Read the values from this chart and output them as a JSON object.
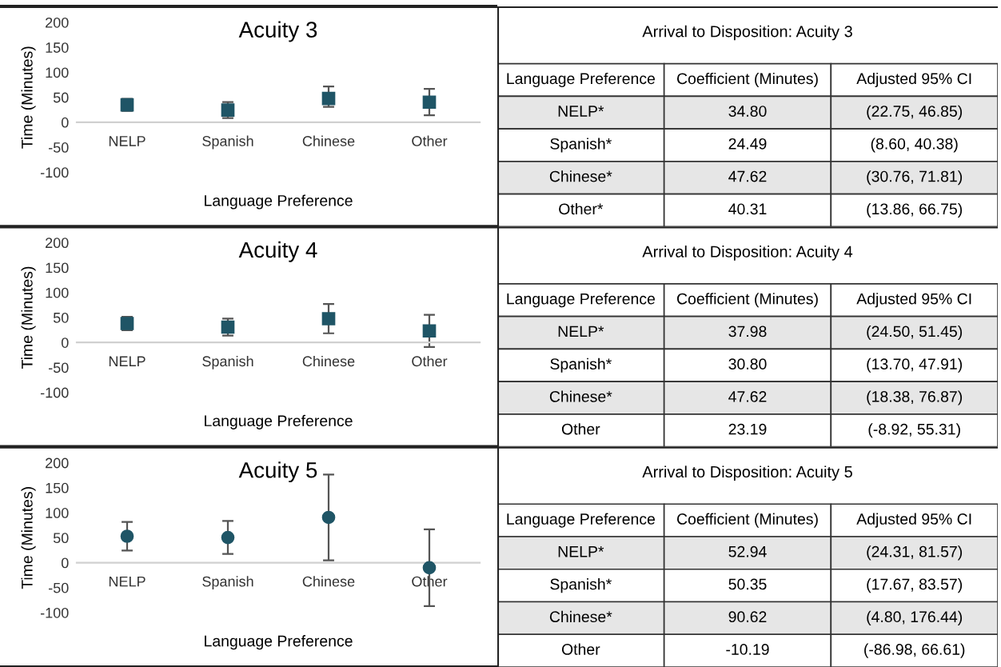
{
  "chart_data": [
    {
      "type": "scatter",
      "title": "Acuity 3",
      "xlabel": "Language Preference",
      "ylabel": "Time (Minutes)",
      "categories": [
        "NELP",
        "Spanish",
        "Chinese",
        "Other"
      ],
      "values": [
        34.8,
        24.49,
        47.62,
        40.31
      ],
      "errors": [
        [
          22.75,
          46.85
        ],
        [
          8.6,
          40.38
        ],
        [
          30.76,
          71.81
        ],
        [
          13.86,
          66.75
        ]
      ],
      "color": "#1f5566",
      "marker": "square",
      "ylim": [
        -100,
        200
      ],
      "yticks": [
        -100,
        -50,
        0,
        50,
        100,
        150,
        200
      ],
      "grid": false
    },
    {
      "type": "other",
      "title": "Arrival to Disposition: Acuity 3",
      "annotations": [
        "Language Preference",
        "Coefficient (Minutes)",
        "Adjusted 95% CI",
        "NELP*",
        "34.80",
        "(22.75, 46.85)",
        "Spanish*",
        "24.49",
        "(8.60, 40.38)",
        "Chinese*",
        "47.62",
        "(30.76, 71.81)",
        "Other*",
        "40.31",
        "(13.86, 66.75)"
      ]
    },
    {
      "type": "scatter",
      "title": "Acuity 4",
      "xlabel": "Language Preference",
      "ylabel": "Time (Minutes)",
      "categories": [
        "NELP",
        "Spanish",
        "Chinese",
        "Other"
      ],
      "values": [
        37.98,
        30.8,
        47.62,
        23.19
      ],
      "errors": [
        [
          24.5,
          51.45
        ],
        [
          13.7,
          47.91
        ],
        [
          18.38,
          76.87
        ],
        [
          -8.92,
          55.31
        ]
      ],
      "color": "#1f5566",
      "marker": "square",
      "ylim": [
        -100,
        200
      ],
      "yticks": [
        -100,
        -50,
        0,
        50,
        100,
        150,
        200
      ],
      "grid": false
    },
    {
      "type": "other",
      "title": "Arrival to Disposition: Acuity 4",
      "annotations": [
        "Language Preference",
        "Coefficient (Minutes)",
        "Adjusted 95% CI",
        "NELP*",
        "37.98",
        "(24.50, 51.45)",
        "Spanish*",
        "30.80",
        "(13.70, 47.91)",
        "Chinese*",
        "47.62",
        "(18.38, 76.87)",
        "Other",
        "23.19",
        "(-8.92, 55.31)"
      ]
    },
    {
      "type": "scatter",
      "title": "Acuity 5",
      "xlabel": "Language Preference",
      "ylabel": "Time (Minutes)",
      "categories": [
        "NELP",
        "Spanish",
        "Chinese",
        "Other"
      ],
      "values": [
        52.94,
        50.35,
        90.62,
        -10.19
      ],
      "errors": [
        [
          24.31,
          81.57
        ],
        [
          17.67,
          83.57
        ],
        [
          4.8,
          176.44
        ],
        [
          -86.98,
          66.61
        ]
      ],
      "color": "#1f5566",
      "marker": "circle",
      "ylim": [
        -100,
        200
      ],
      "yticks": [
        -100,
        -50,
        0,
        50,
        100,
        150,
        200
      ],
      "grid": false
    },
    {
      "type": "other",
      "title": "Arrival to Disposition: Acuity 5",
      "annotations": [
        "Language Preference",
        "Coefficient (Minutes)",
        "Adjusted 95% CI",
        "NELP*",
        "52.94",
        "(24.31, 81.57)",
        "Spanish*",
        "50.35",
        "(17.67, 83.57)",
        "Chinese*",
        "90.62",
        "(4.80, 176.44)",
        "Other",
        "-10.19",
        "(-86.98, 66.61)"
      ]
    }
  ]
}
